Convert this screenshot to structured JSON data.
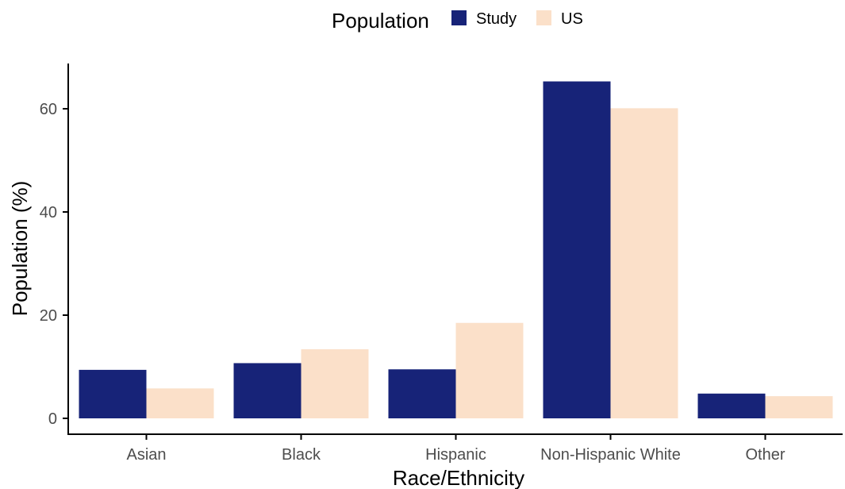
{
  "chart_data": {
    "type": "bar",
    "xlabel": "Race/Ethnicity",
    "ylabel": "Population (%)",
    "categories": [
      "Asian",
      "Black",
      "Hispanic",
      "Non-Hispanic White",
      "Other"
    ],
    "series": [
      {
        "name": "Study",
        "color": "#172378",
        "values": [
          9.4,
          10.7,
          9.5,
          65.3,
          4.8
        ]
      },
      {
        "name": "US",
        "color": "#fbe0c9",
        "values": [
          5.8,
          13.4,
          18.5,
          60.1,
          4.3
        ]
      }
    ],
    "ylim": [
      0,
      69
    ],
    "yticks": [
      0,
      20,
      40,
      60
    ],
    "grid": false,
    "legend": {
      "title": "Population",
      "position": "top"
    }
  }
}
